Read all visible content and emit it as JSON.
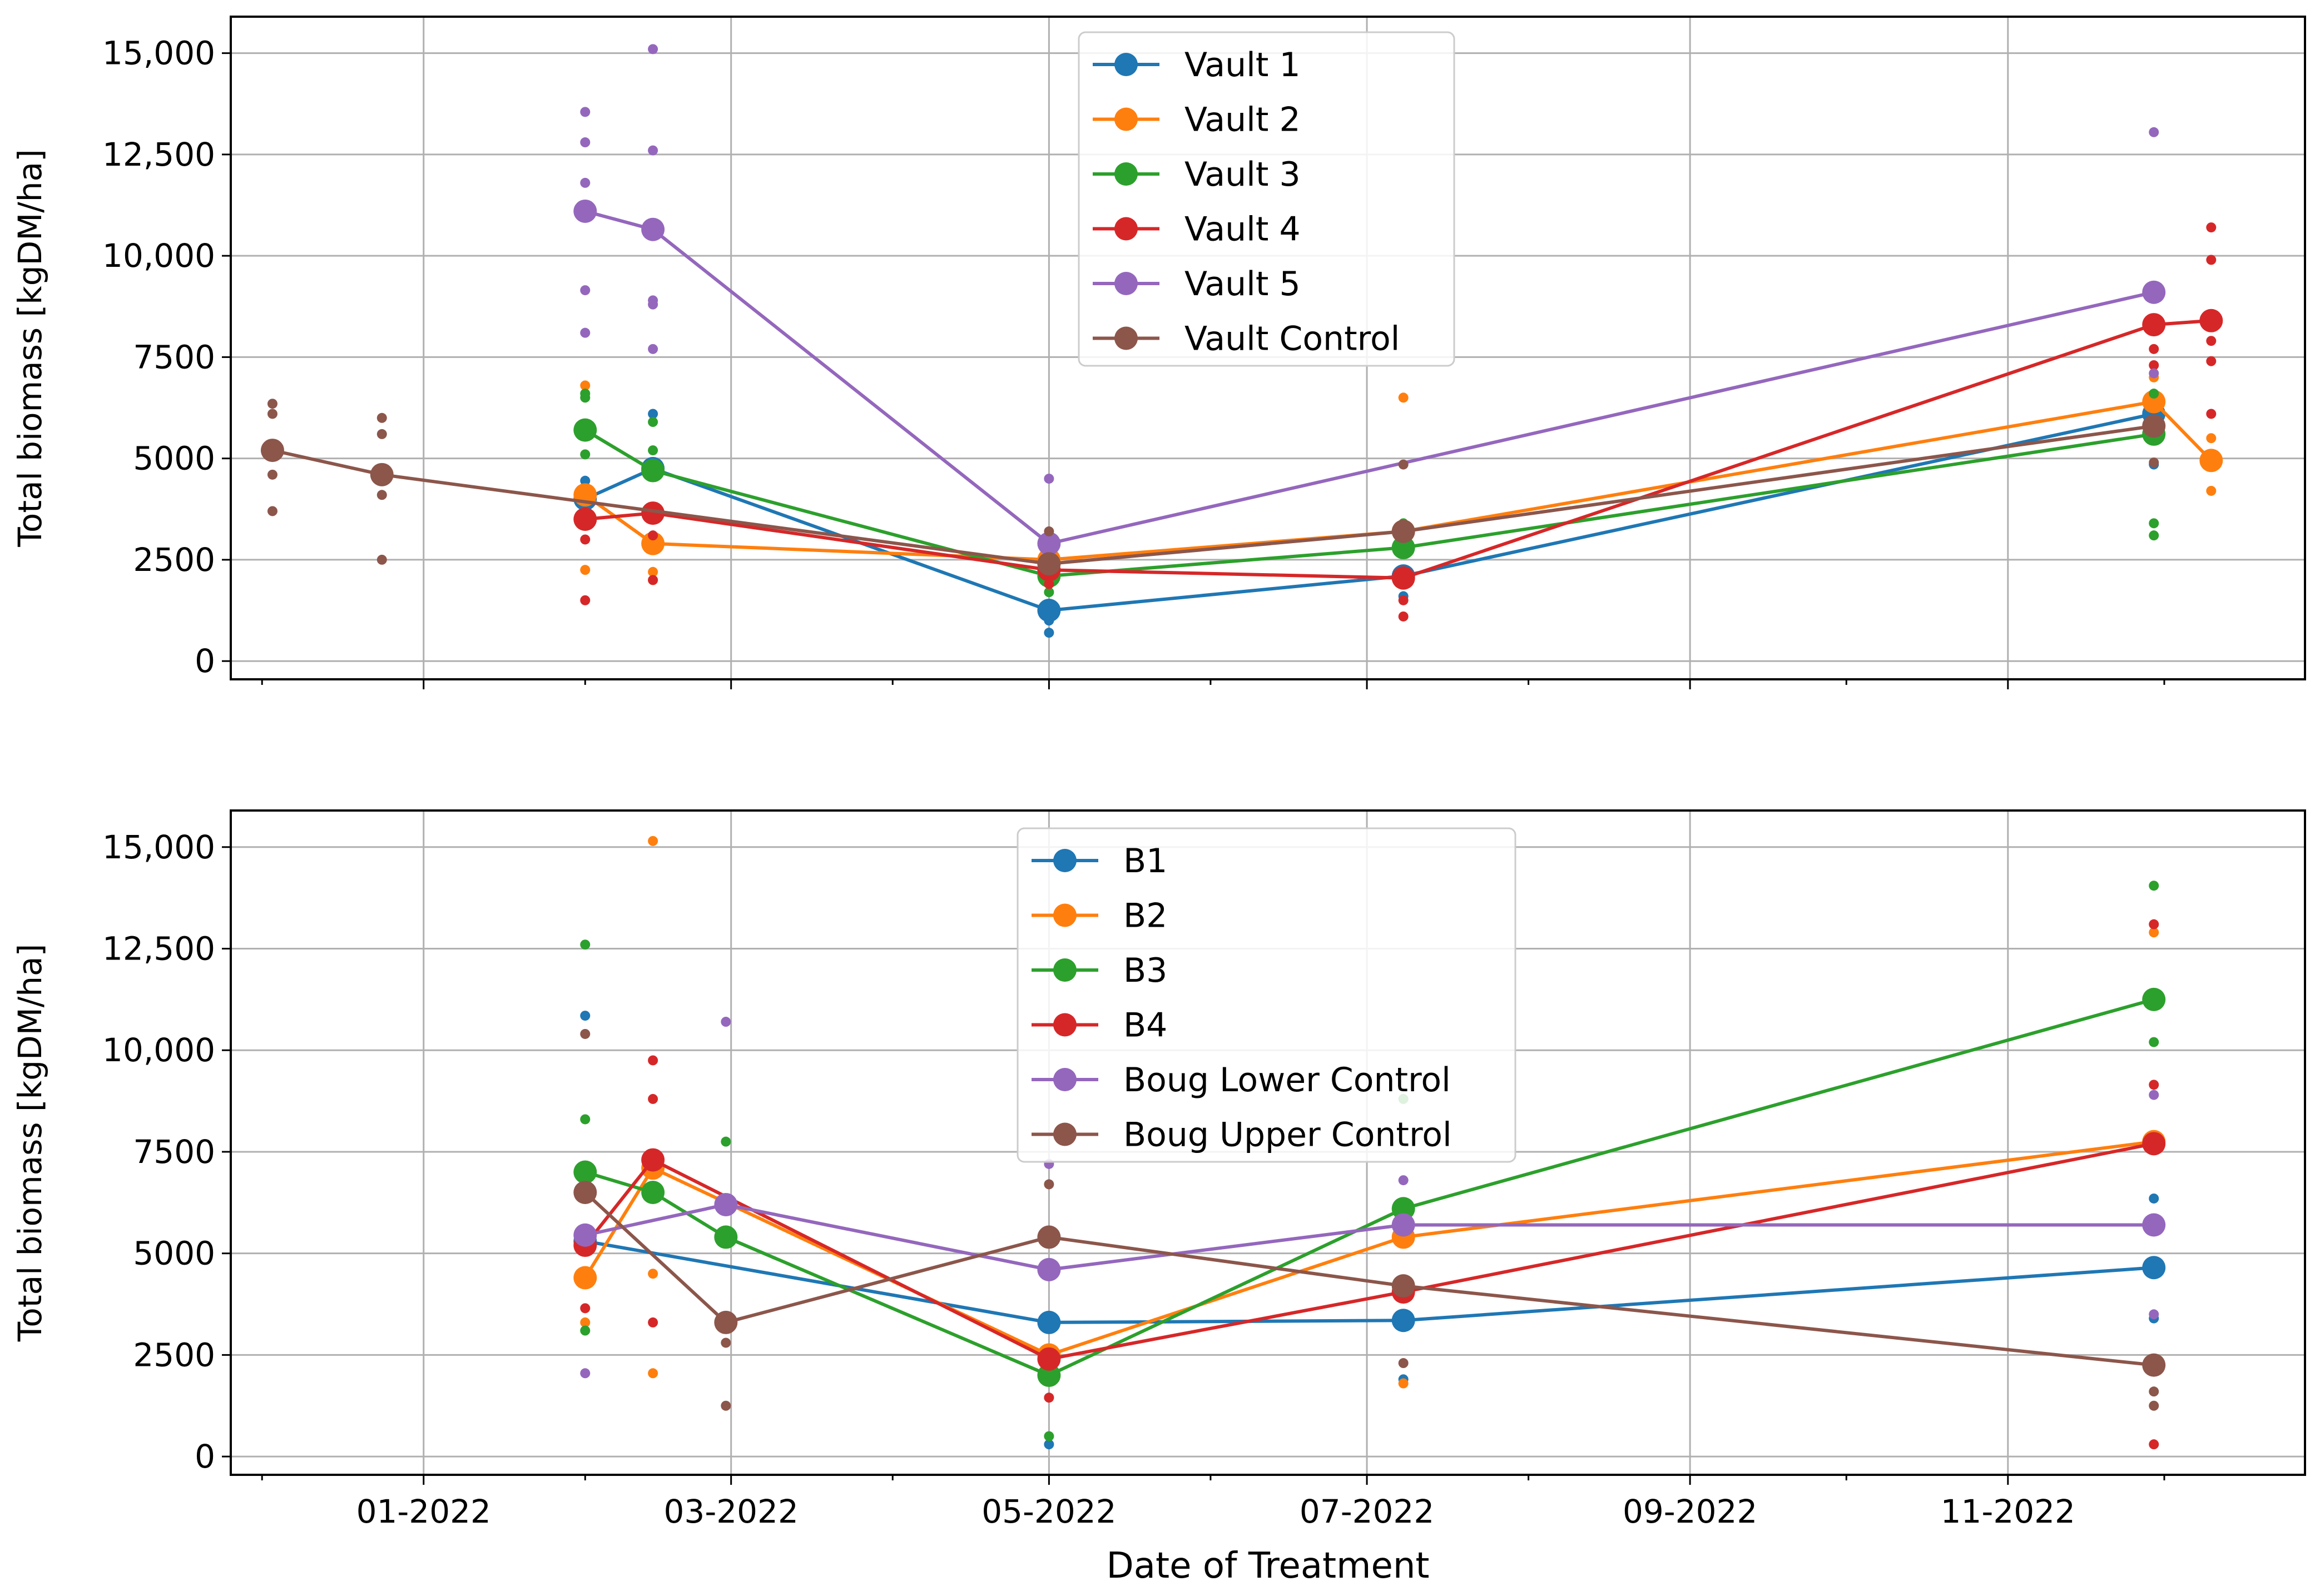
{
  "chart_data": [
    {
      "type": "line",
      "panel": "top",
      "xlabel": "",
      "ylabel": "Total biomass [kgDM/ha]",
      "ylim": [
        -450,
        15900
      ],
      "yticks": [
        0,
        2500,
        5000,
        7500,
        10000,
        12500,
        15000
      ],
      "ytick_labels": [
        "0",
        "2500",
        "5000",
        "7500",
        "10,000",
        "12,500",
        "15,000"
      ],
      "grid": true,
      "legend_position": "upper-center",
      "series": [
        {
          "name": "Vault 1",
          "color": "#1f77b4",
          "means": [
            {
              "x": "2022-02-01",
              "y": 4000
            },
            {
              "x": "2022-02-14",
              "y": 4750
            },
            {
              "x": "2022-05-01",
              "y": 1250
            },
            {
              "x": "2022-07-08",
              "y": 2100
            },
            {
              "x": "2022-11-29",
              "y": 6100
            }
          ],
          "samples": [
            {
              "x": "2022-02-01",
              "y": 4450
            },
            {
              "x": "2022-02-01",
              "y": 3600
            },
            {
              "x": "2022-02-14",
              "y": 6100
            },
            {
              "x": "2022-02-14",
              "y": 3700
            },
            {
              "x": "2022-05-01",
              "y": 700
            },
            {
              "x": "2022-05-01",
              "y": 1000
            },
            {
              "x": "2022-07-08",
              "y": 1600
            },
            {
              "x": "2022-11-29",
              "y": 4850
            },
            {
              "x": "2022-11-29",
              "y": 6400
            }
          ]
        },
        {
          "name": "Vault 2",
          "color": "#ff7f0e",
          "means": [
            {
              "x": "2022-02-01",
              "y": 4100
            },
            {
              "x": "2022-02-14",
              "y": 2900
            },
            {
              "x": "2022-05-01",
              "y": 2500
            },
            {
              "x": "2022-07-08",
              "y": 3200
            },
            {
              "x": "2022-11-29",
              "y": 6400
            },
            {
              "x": "2022-12-10",
              "y": 4950
            }
          ],
          "samples": [
            {
              "x": "2022-02-01",
              "y": 6800
            },
            {
              "x": "2022-02-01",
              "y": 2250
            },
            {
              "x": "2022-02-14",
              "y": 2200
            },
            {
              "x": "2022-02-14",
              "y": 2000
            },
            {
              "x": "2022-05-01",
              "y": 2900
            },
            {
              "x": "2022-07-08",
              "y": 6500
            },
            {
              "x": "2022-07-08",
              "y": 2900
            },
            {
              "x": "2022-11-29",
              "y": 7000
            },
            {
              "x": "2022-12-10",
              "y": 5500
            },
            {
              "x": "2022-12-10",
              "y": 4200
            }
          ]
        },
        {
          "name": "Vault 3",
          "color": "#2ca02c",
          "means": [
            {
              "x": "2022-02-01",
              "y": 5700
            },
            {
              "x": "2022-02-14",
              "y": 4700
            },
            {
              "x": "2022-05-01",
              "y": 2100
            },
            {
              "x": "2022-07-08",
              "y": 2800
            },
            {
              "x": "2022-11-29",
              "y": 5600
            }
          ],
          "samples": [
            {
              "x": "2022-02-01",
              "y": 6600
            },
            {
              "x": "2022-02-01",
              "y": 6500
            },
            {
              "x": "2022-02-01",
              "y": 5100
            },
            {
              "x": "2022-02-14",
              "y": 5900
            },
            {
              "x": "2022-02-14",
              "y": 5200
            },
            {
              "x": "2022-05-01",
              "y": 1700
            },
            {
              "x": "2022-07-08",
              "y": 3400
            },
            {
              "x": "2022-07-08",
              "y": 3300
            },
            {
              "x": "2022-11-29",
              "y": 6600
            },
            {
              "x": "2022-11-29",
              "y": 3400
            },
            {
              "x": "2022-11-29",
              "y": 3100
            }
          ]
        },
        {
          "name": "Vault 4",
          "color": "#d62728",
          "means": [
            {
              "x": "2022-02-01",
              "y": 3500
            },
            {
              "x": "2022-02-14",
              "y": 3650
            },
            {
              "x": "2022-05-01",
              "y": 2250
            },
            {
              "x": "2022-07-08",
              "y": 2050
            },
            {
              "x": "2022-11-29",
              "y": 8300
            },
            {
              "x": "2022-12-10",
              "y": 8400
            }
          ],
          "samples": [
            {
              "x": "2022-02-01",
              "y": 1500
            },
            {
              "x": "2022-02-01",
              "y": 3000
            },
            {
              "x": "2022-02-14",
              "y": 2000
            },
            {
              "x": "2022-02-14",
              "y": 3100
            },
            {
              "x": "2022-05-01",
              "y": 1900
            },
            {
              "x": "2022-07-08",
              "y": 1500
            },
            {
              "x": "2022-07-08",
              "y": 1100
            },
            {
              "x": "2022-11-29",
              "y": 7700
            },
            {
              "x": "2022-11-29",
              "y": 7300
            },
            {
              "x": "2022-12-10",
              "y": 10700
            },
            {
              "x": "2022-12-10",
              "y": 9900
            },
            {
              "x": "2022-12-10",
              "y": 7900
            },
            {
              "x": "2022-12-10",
              "y": 7400
            },
            {
              "x": "2022-12-10",
              "y": 6100
            }
          ]
        },
        {
          "name": "Vault 5",
          "color": "#9467bd",
          "means": [
            {
              "x": "2022-02-01",
              "y": 11100
            },
            {
              "x": "2022-02-14",
              "y": 10650
            },
            {
              "x": "2022-05-01",
              "y": 2900
            },
            {
              "x": "2022-11-29",
              "y": 9100
            }
          ],
          "samples": [
            {
              "x": "2022-02-01",
              "y": 13550
            },
            {
              "x": "2022-02-01",
              "y": 12800
            },
            {
              "x": "2022-02-01",
              "y": 11800
            },
            {
              "x": "2022-02-01",
              "y": 9150
            },
            {
              "x": "2022-02-01",
              "y": 8100
            },
            {
              "x": "2022-02-14",
              "y": 15100
            },
            {
              "x": "2022-02-14",
              "y": 12600
            },
            {
              "x": "2022-02-14",
              "y": 8900
            },
            {
              "x": "2022-02-14",
              "y": 8800
            },
            {
              "x": "2022-02-14",
              "y": 7700
            },
            {
              "x": "2022-05-01",
              "y": 4500
            },
            {
              "x": "2022-11-29",
              "y": 13050
            },
            {
              "x": "2022-11-29",
              "y": 7100
            }
          ]
        },
        {
          "name": "Vault Control",
          "color": "#8c564b",
          "means": [
            {
              "x": "2021-12-03",
              "y": 5200
            },
            {
              "x": "2021-12-24",
              "y": 4600
            },
            {
              "x": "2022-05-01",
              "y": 2400
            },
            {
              "x": "2022-07-08",
              "y": 3200
            },
            {
              "x": "2022-11-29",
              "y": 5800
            }
          ],
          "samples": [
            {
              "x": "2021-12-03",
              "y": 6350
            },
            {
              "x": "2021-12-03",
              "y": 6100
            },
            {
              "x": "2021-12-03",
              "y": 4600
            },
            {
              "x": "2021-12-03",
              "y": 3700
            },
            {
              "x": "2021-12-24",
              "y": 6000
            },
            {
              "x": "2021-12-24",
              "y": 5600
            },
            {
              "x": "2021-12-24",
              "y": 4100
            },
            {
              "x": "2021-12-24",
              "y": 2500
            },
            {
              "x": "2022-05-01",
              "y": 3200
            },
            {
              "x": "2022-07-08",
              "y": 4850
            },
            {
              "x": "2022-11-29",
              "y": 4900
            }
          ]
        }
      ]
    },
    {
      "type": "line",
      "panel": "bottom",
      "xlabel": "Date of Treatment",
      "ylabel": "Total biomass [kgDM/ha]",
      "ylim": [
        -450,
        15900
      ],
      "yticks": [
        0,
        2500,
        5000,
        7500,
        10000,
        12500,
        15000
      ],
      "ytick_labels": [
        "0",
        "2500",
        "5000",
        "7500",
        "10,000",
        "12,500",
        "15,000"
      ],
      "xticks": [
        "2022-01-01",
        "2022-03-01",
        "2022-05-01",
        "2022-07-01",
        "2022-09-01",
        "2022-11-01"
      ],
      "xtick_labels": [
        "01-2022",
        "03-2022",
        "05-2022",
        "07-2022",
        "09-2022",
        "11-2022"
      ],
      "grid": true,
      "legend_position": "upper-center",
      "series": [
        {
          "name": "B1",
          "color": "#1f77b4",
          "means": [
            {
              "x": "2022-02-01",
              "y": 5300
            },
            {
              "x": "2022-05-01",
              "y": 3300
            },
            {
              "x": "2022-07-08",
              "y": 3350
            },
            {
              "x": "2022-11-29",
              "y": 4650
            }
          ],
          "samples": [
            {
              "x": "2022-02-01",
              "y": 10850
            },
            {
              "x": "2022-05-01",
              "y": 300
            },
            {
              "x": "2022-07-08",
              "y": 1900
            },
            {
              "x": "2022-11-29",
              "y": 6350
            },
            {
              "x": "2022-11-29",
              "y": 3400
            }
          ]
        },
        {
          "name": "B2",
          "color": "#ff7f0e",
          "means": [
            {
              "x": "2022-02-01",
              "y": 4400
            },
            {
              "x": "2022-02-14",
              "y": 7100
            },
            {
              "x": "2022-05-01",
              "y": 2500
            },
            {
              "x": "2022-07-08",
              "y": 5400
            },
            {
              "x": "2022-11-29",
              "y": 7750
            }
          ],
          "samples": [
            {
              "x": "2022-02-01",
              "y": 3300
            },
            {
              "x": "2022-02-14",
              "y": 15150
            },
            {
              "x": "2022-02-14",
              "y": 2050
            },
            {
              "x": "2022-02-14",
              "y": 4500
            },
            {
              "x": "2022-07-08",
              "y": 1800
            },
            {
              "x": "2022-11-29",
              "y": 12900
            }
          ]
        },
        {
          "name": "B3",
          "color": "#2ca02c",
          "means": [
            {
              "x": "2022-02-01",
              "y": 7000
            },
            {
              "x": "2022-02-14",
              "y": 6500
            },
            {
              "x": "2022-02-28",
              "y": 5400
            },
            {
              "x": "2022-05-01",
              "y": 2000
            },
            {
              "x": "2022-07-08",
              "y": 6100
            },
            {
              "x": "2022-11-29",
              "y": 11250
            }
          ],
          "samples": [
            {
              "x": "2022-02-01",
              "y": 12600
            },
            {
              "x": "2022-02-01",
              "y": 8300
            },
            {
              "x": "2022-02-01",
              "y": 3100
            },
            {
              "x": "2022-02-28",
              "y": 7750
            },
            {
              "x": "2022-05-01",
              "y": 500
            },
            {
              "x": "2022-07-08",
              "y": 8800
            },
            {
              "x": "2022-11-29",
              "y": 14050
            },
            {
              "x": "2022-11-29",
              "y": 10200
            }
          ]
        },
        {
          "name": "B4",
          "color": "#d62728",
          "means": [
            {
              "x": "2022-02-01",
              "y": 5200
            },
            {
              "x": "2022-02-14",
              "y": 7300
            },
            {
              "x": "2022-05-01",
              "y": 2400
            },
            {
              "x": "2022-07-08",
              "y": 4050
            },
            {
              "x": "2022-11-29",
              "y": 7700
            }
          ],
          "samples": [
            {
              "x": "2022-02-01",
              "y": 3650
            },
            {
              "x": "2022-02-14",
              "y": 9750
            },
            {
              "x": "2022-02-14",
              "y": 8800
            },
            {
              "x": "2022-02-14",
              "y": 3300
            },
            {
              "x": "2022-05-01",
              "y": 1450
            },
            {
              "x": "2022-11-29",
              "y": 13100
            },
            {
              "x": "2022-11-29",
              "y": 9150
            },
            {
              "x": "2022-11-29",
              "y": 300
            }
          ]
        },
        {
          "name": "Boug Lower Control",
          "color": "#9467bd",
          "means": [
            {
              "x": "2022-02-01",
              "y": 5450
            },
            {
              "x": "2022-02-28",
              "y": 6200
            },
            {
              "x": "2022-05-01",
              "y": 4600
            },
            {
              "x": "2022-07-08",
              "y": 5700
            },
            {
              "x": "2022-11-29",
              "y": 5700
            }
          ],
          "samples": [
            {
              "x": "2022-02-01",
              "y": 2050
            },
            {
              "x": "2022-02-28",
              "y": 10700
            },
            {
              "x": "2022-05-01",
              "y": 7200
            },
            {
              "x": "2022-07-08",
              "y": 6800
            },
            {
              "x": "2022-11-29",
              "y": 8900
            },
            {
              "x": "2022-11-29",
              "y": 3500
            }
          ]
        },
        {
          "name": "Boug Upper Control",
          "color": "#8c564b",
          "means": [
            {
              "x": "2022-02-01",
              "y": 6500
            },
            {
              "x": "2022-02-28",
              "y": 3300
            },
            {
              "x": "2022-05-01",
              "y": 5400
            },
            {
              "x": "2022-07-08",
              "y": 4200
            },
            {
              "x": "2022-11-29",
              "y": 2250
            }
          ],
          "samples": [
            {
              "x": "2022-02-01",
              "y": 10400
            },
            {
              "x": "2022-02-28",
              "y": 1250
            },
            {
              "x": "2022-02-28",
              "y": 2800
            },
            {
              "x": "2022-05-01",
              "y": 6700
            },
            {
              "x": "2022-07-08",
              "y": 2300
            },
            {
              "x": "2022-11-29",
              "y": 1250
            },
            {
              "x": "2022-11-29",
              "y": 1600
            }
          ]
        }
      ]
    }
  ]
}
